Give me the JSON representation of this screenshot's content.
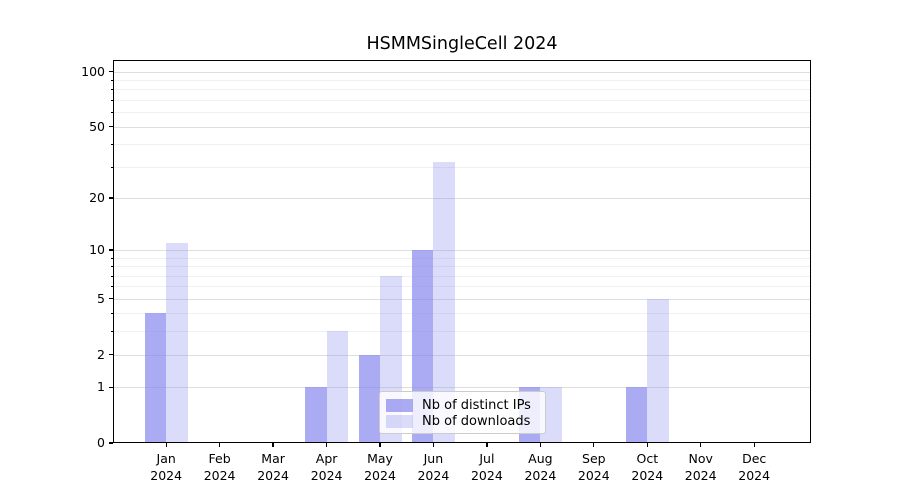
{
  "chart_data": {
    "type": "bar",
    "title": "HSMMSingleCell 2024",
    "x_categories": [
      {
        "line1": "Jan",
        "line2": "2024"
      },
      {
        "line1": "Feb",
        "line2": "2024"
      },
      {
        "line1": "Mar",
        "line2": "2024"
      },
      {
        "line1": "Apr",
        "line2": "2024"
      },
      {
        "line1": "May",
        "line2": "2024"
      },
      {
        "line1": "Jun",
        "line2": "2024"
      },
      {
        "line1": "Jul",
        "line2": "2024"
      },
      {
        "line1": "Aug",
        "line2": "2024"
      },
      {
        "line1": "Sep",
        "line2": "2024"
      },
      {
        "line1": "Oct",
        "line2": "2024"
      },
      {
        "line1": "Nov",
        "line2": "2024"
      },
      {
        "line1": "Dec",
        "line2": "2024"
      }
    ],
    "series": [
      {
        "name": "Nb of distinct IPs",
        "base_color": "#8888ee",
        "alpha": 0.7,
        "values": [
          4,
          0,
          0,
          1,
          2,
          10,
          0,
          1,
          0,
          1,
          0,
          0
        ]
      },
      {
        "name": "Nb of downloads",
        "base_color": "#8888ee",
        "alpha": 0.3,
        "values": [
          11,
          0,
          0,
          3,
          7,
          32,
          0,
          1,
          0,
          5,
          0,
          0
        ]
      }
    ],
    "y_scale": "log1p",
    "y_ticks": [
      0,
      1,
      2,
      5,
      10,
      20,
      50,
      100
    ],
    "y_tick_labels": [
      "0",
      "1",
      "2",
      "5",
      "10",
      "20",
      "50",
      "100"
    ],
    "y_minor_ticks": [
      3,
      4,
      6,
      7,
      8,
      9,
      30,
      40,
      60,
      70,
      80,
      90
    ],
    "ylim": [
      0,
      115.5
    ],
    "grid": "on",
    "legend_position": "lower center",
    "colors": {
      "bar_dark_rendered": "#aaaaf4",
      "bar_light_rendered": "#dbdbfa",
      "grid_major": "#dedede",
      "grid_minor": "#f0f0f0",
      "axis": "#000000",
      "legend_border": "#cccccc"
    }
  }
}
